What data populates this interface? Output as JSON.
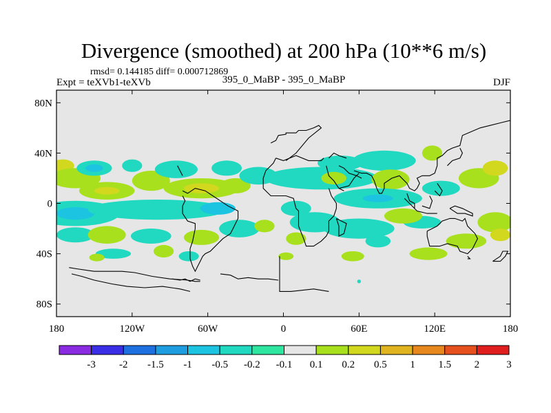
{
  "chart_data": {
    "type": "heatmap",
    "title": "Divergence (smoothed) at 200 hPa (10**6 m/s)",
    "stats_label": "rmsd= 0.144185 diff= 0.000712869",
    "left_label": "Expt = teXVb1-teXVb",
    "center_label": "395_0_MaBP - 395_0_MaBP",
    "right_label": "DJF",
    "x_ticks": [
      {
        "value": -180,
        "label": "180"
      },
      {
        "value": -120,
        "label": "120W"
      },
      {
        "value": -60,
        "label": "60W"
      },
      {
        "value": 0,
        "label": "0"
      },
      {
        "value": 60,
        "label": "60E"
      },
      {
        "value": 120,
        "label": "120E"
      },
      {
        "value": 180,
        "label": "180"
      }
    ],
    "y_ticks": [
      {
        "value": 80,
        "label": "80N"
      },
      {
        "value": 40,
        "label": "40N"
      },
      {
        "value": 0,
        "label": "0"
      },
      {
        "value": -40,
        "label": "40S"
      },
      {
        "value": -80,
        "label": "80S"
      }
    ],
    "xlim": [
      -180,
      180
    ],
    "ylim": [
      -90,
      90
    ],
    "colorbar": {
      "levels": [
        "-3",
        "-2",
        "-1.5",
        "-1",
        "-0.5",
        "-0.2",
        "-0.1",
        "0.1",
        "0.2",
        "0.5",
        "1",
        "1.5",
        "2",
        "3"
      ],
      "colors": [
        "#8a2be2",
        "#3a2ee6",
        "#1e6fe0",
        "#1e9ee0",
        "#1cc4e2",
        "#20d9c0",
        "#2ee6a0",
        "#e6e6e6",
        "#a8e01e",
        "#d2d81e",
        "#e0b41e",
        "#e6881e",
        "#e6501e",
        "#e01e1e"
      ]
    },
    "background_color": "#e6e6e6",
    "blobs": [
      {
        "lon": -175,
        "lat": 30,
        "rx": 9,
        "ry": 5,
        "bin": 9
      },
      {
        "lon": -165,
        "lat": 20,
        "rx": 20,
        "ry": 8,
        "bin": 8
      },
      {
        "lon": -150,
        "lat": 28,
        "rx": 14,
        "ry": 6,
        "bin": 5
      },
      {
        "lon": -150,
        "lat": 28,
        "rx": 7,
        "ry": 3,
        "bin": 4
      },
      {
        "lon": -140,
        "lat": 10,
        "rx": 22,
        "ry": 7,
        "bin": 8
      },
      {
        "lon": -140,
        "lat": 10,
        "rx": 10,
        "ry": 3,
        "bin": 9
      },
      {
        "lon": -120,
        "lat": 30,
        "rx": 8,
        "ry": 5,
        "bin": 5
      },
      {
        "lon": -105,
        "lat": 18,
        "rx": 15,
        "ry": 8,
        "bin": 8
      },
      {
        "lon": -85,
        "lat": 27,
        "rx": 17,
        "ry": 7,
        "bin": 5
      },
      {
        "lon": -65,
        "lat": 12,
        "rx": 30,
        "ry": 8,
        "bin": 8
      },
      {
        "lon": -65,
        "lat": 12,
        "rx": 14,
        "ry": 4,
        "bin": 9
      },
      {
        "lon": -45,
        "lat": 28,
        "rx": 12,
        "ry": 6,
        "bin": 5
      },
      {
        "lon": -38,
        "lat": 14,
        "rx": 12,
        "ry": 6,
        "bin": 8
      },
      {
        "lon": -20,
        "lat": 22,
        "rx": 15,
        "ry": 7,
        "bin": 5
      },
      {
        "lon": -165,
        "lat": -8,
        "rx": 35,
        "ry": 10,
        "bin": 5
      },
      {
        "lon": -165,
        "lat": -8,
        "rx": 15,
        "ry": 5,
        "bin": 4
      },
      {
        "lon": -135,
        "lat": -5,
        "rx": 20,
        "ry": 5,
        "bin": 5
      },
      {
        "lon": -100,
        "lat": -5,
        "rx": 55,
        "ry": 8,
        "bin": 5
      },
      {
        "lon": -52,
        "lat": -4,
        "rx": 14,
        "ry": 5,
        "bin": 4
      },
      {
        "lon": -165,
        "lat": -25,
        "rx": 15,
        "ry": 6,
        "bin": 5
      },
      {
        "lon": -140,
        "lat": -25,
        "rx": 15,
        "ry": 7,
        "bin": 8
      },
      {
        "lon": -105,
        "lat": -26,
        "rx": 16,
        "ry": 6,
        "bin": 5
      },
      {
        "lon": -65,
        "lat": -27,
        "rx": 14,
        "ry": 6,
        "bin": 8
      },
      {
        "lon": -35,
        "lat": -20,
        "rx": 16,
        "ry": 7,
        "bin": 5
      },
      {
        "lon": -15,
        "lat": -18,
        "rx": 8,
        "ry": 5,
        "bin": 8
      },
      {
        "lon": -135,
        "lat": -40,
        "rx": 14,
        "ry": 4,
        "bin": 5
      },
      {
        "lon": -148,
        "lat": -43,
        "rx": 6,
        "ry": 3,
        "bin": 8
      },
      {
        "lon": -95,
        "lat": -38,
        "rx": 8,
        "ry": 5,
        "bin": 8
      },
      {
        "lon": -75,
        "lat": -42,
        "rx": 8,
        "ry": 4,
        "bin": 5
      },
      {
        "lon": 30,
        "lat": 20,
        "rx": 45,
        "ry": 9,
        "bin": 5
      },
      {
        "lon": 45,
        "lat": 32,
        "rx": 18,
        "ry": 6,
        "bin": 5
      },
      {
        "lon": 40,
        "lat": 20,
        "rx": 10,
        "ry": 5,
        "bin": 8
      },
      {
        "lon": 80,
        "lat": 34,
        "rx": 25,
        "ry": 8,
        "bin": 5
      },
      {
        "lon": 118,
        "lat": 40,
        "rx": 8,
        "ry": 6,
        "bin": 8
      },
      {
        "lon": 85,
        "lat": 19,
        "rx": 15,
        "ry": 8,
        "bin": 8
      },
      {
        "lon": 75,
        "lat": 4,
        "rx": 35,
        "ry": 8,
        "bin": 5
      },
      {
        "lon": 75,
        "lat": 4,
        "rx": 12,
        "ry": 3,
        "bin": 4
      },
      {
        "lon": 125,
        "lat": 12,
        "rx": 15,
        "ry": 6,
        "bin": 5
      },
      {
        "lon": 155,
        "lat": 20,
        "rx": 16,
        "ry": 8,
        "bin": 8
      },
      {
        "lon": 168,
        "lat": 28,
        "rx": 10,
        "ry": 6,
        "bin": 9
      },
      {
        "lon": 10,
        "lat": -4,
        "rx": 12,
        "ry": 6,
        "bin": 5
      },
      {
        "lon": 25,
        "lat": -15,
        "rx": 20,
        "ry": 8,
        "bin": 5
      },
      {
        "lon": 60,
        "lat": -20,
        "rx": 28,
        "ry": 8,
        "bin": 5
      },
      {
        "lon": 110,
        "lat": -15,
        "rx": 15,
        "ry": 5,
        "bin": 5
      },
      {
        "lon": 95,
        "lat": -10,
        "rx": 15,
        "ry": 6,
        "bin": 8
      },
      {
        "lon": 168,
        "lat": -15,
        "rx": 14,
        "ry": 8,
        "bin": 8
      },
      {
        "lon": 172,
        "lat": -25,
        "rx": 8,
        "ry": 5,
        "bin": 9
      },
      {
        "lon": 10,
        "lat": -28,
        "rx": 8,
        "ry": 5,
        "bin": 8
      },
      {
        "lon": 75,
        "lat": -30,
        "rx": 10,
        "ry": 5,
        "bin": 5
      },
      {
        "lon": 145,
        "lat": -30,
        "rx": 16,
        "ry": 6,
        "bin": 8
      },
      {
        "lon": 115,
        "lat": -40,
        "rx": 15,
        "ry": 5,
        "bin": 8
      },
      {
        "lon": 55,
        "lat": -42,
        "rx": 9,
        "ry": 4,
        "bin": 8
      },
      {
        "lon": 2,
        "lat": -42,
        "rx": 6,
        "ry": 3,
        "bin": 8
      },
      {
        "lon": 60,
        "lat": -62,
        "rx": 1.5,
        "ry": 1.5,
        "bin": 5
      }
    ],
    "coastlines": [
      [
        [
          -170,
          -51
        ],
        [
          -164,
          -52
        ],
        [
          -150,
          -54
        ],
        [
          -128,
          -54
        ],
        [
          -118,
          -55
        ],
        [
          -104,
          -58
        ],
        [
          -90,
          -60
        ],
        [
          -76,
          -61
        ],
        [
          -70,
          -62
        ],
        [
          -66,
          -62
        ]
      ],
      [
        [
          -168,
          -56
        ],
        [
          -160,
          -58
        ],
        [
          -150,
          -61
        ],
        [
          -136,
          -64
        ],
        [
          -124,
          -66
        ],
        [
          -110,
          -67
        ],
        [
          -96,
          -66
        ],
        [
          -82,
          -68
        ],
        [
          -74,
          -70
        ]
      ],
      [
        [
          -88,
          -60
        ],
        [
          -82,
          -61
        ],
        [
          -78,
          -60
        ],
        [
          -74,
          -62
        ],
        [
          -70,
          -60
        ],
        [
          -66,
          -61
        ]
      ],
      [
        [
          -50,
          -56
        ],
        [
          -42,
          -57
        ],
        [
          -36,
          -60
        ],
        [
          -28,
          -59
        ],
        [
          -20,
          -60
        ],
        [
          -12,
          -60
        ],
        [
          -4,
          -61
        ]
      ],
      [
        [
          -3,
          -42
        ],
        [
          -3,
          -70
        ],
        [
          6,
          -70
        ],
        [
          24,
          -68
        ],
        [
          36,
          -70
        ]
      ],
      [
        [
          -10,
          48
        ],
        [
          -6,
          50
        ],
        [
          -4,
          54
        ],
        [
          2,
          55
        ],
        [
          2,
          56
        ],
        [
          10,
          56
        ],
        [
          12,
          58
        ],
        [
          18,
          58
        ],
        [
          24,
          60
        ],
        [
          28,
          62
        ],
        [
          30,
          60
        ],
        [
          20,
          52
        ],
        [
          10,
          40
        ],
        [
          2,
          34
        ]
      ],
      [
        [
          -6,
          36
        ],
        [
          0,
          34
        ],
        [
          10,
          38
        ],
        [
          20,
          34
        ],
        [
          30,
          34
        ],
        [
          32,
          36
        ]
      ],
      [
        [
          36,
          36
        ],
        [
          40,
          40
        ],
        [
          44,
          38
        ],
        [
          50,
          36
        ]
      ],
      [
        [
          34,
          30
        ],
        [
          36,
          22
        ],
        [
          40,
          18
        ],
        [
          44,
          12
        ],
        [
          48,
          10
        ]
      ],
      [
        [
          44,
          12
        ],
        [
          52,
          14
        ],
        [
          56,
          20
        ],
        [
          60,
          24
        ]
      ],
      [
        [
          36,
          12
        ],
        [
          38,
          6
        ],
        [
          42,
          0
        ],
        [
          42,
          -4
        ],
        [
          40,
          -10
        ],
        [
          36,
          -14
        ],
        [
          36,
          -22
        ],
        [
          34,
          -26
        ],
        [
          30,
          -30
        ],
        [
          24,
          -34
        ],
        [
          18,
          -34
        ],
        [
          16,
          -28
        ],
        [
          12,
          -18
        ],
        [
          12,
          -6
        ],
        [
          10,
          -4
        ],
        [
          8,
          4
        ],
        [
          2,
          6
        ],
        [
          -6,
          6
        ],
        [
          -10,
          6
        ],
        [
          -16,
          12
        ],
        [
          -16,
          20
        ],
        [
          -14,
          26
        ],
        [
          -8,
          32
        ],
        [
          -6,
          36
        ]
      ],
      [
        [
          -80,
          10
        ],
        [
          -76,
          8
        ],
        [
          -70,
          12
        ],
        [
          -62,
          10
        ],
        [
          -56,
          6
        ],
        [
          -50,
          2
        ],
        [
          -44,
          -2
        ],
        [
          -36,
          -6
        ],
        [
          -36,
          -12
        ],
        [
          -40,
          -20
        ],
        [
          -42,
          -24
        ],
        [
          -48,
          -28
        ],
        [
          -52,
          -32
        ],
        [
          -56,
          -36
        ],
        [
          -58,
          -38
        ],
        [
          -62,
          -40
        ],
        [
          -64,
          -42
        ],
        [
          -66,
          -46
        ],
        [
          -68,
          -50
        ],
        [
          -70,
          -54
        ],
        [
          -72,
          -50
        ],
        [
          -74,
          -44
        ],
        [
          -74,
          -36
        ],
        [
          -72,
          -30
        ],
        [
          -70,
          -20
        ],
        [
          -70,
          -16
        ],
        [
          -76,
          -14
        ],
        [
          -80,
          -8
        ],
        [
          -80,
          -2
        ],
        [
          -78,
          2
        ],
        [
          -80,
          6
        ]
      ],
      [
        [
          -84,
          30
        ],
        [
          -82,
          26
        ],
        [
          -80,
          22
        ]
      ],
      [
        [
          42,
          -12
        ],
        [
          46,
          -14
        ],
        [
          50,
          -16
        ],
        [
          48,
          -24
        ],
        [
          44,
          -26
        ],
        [
          44,
          -18
        ],
        [
          42,
          -12
        ]
      ],
      [
        [
          44,
          30
        ],
        [
          48,
          28
        ],
        [
          52,
          24
        ],
        [
          58,
          22
        ],
        [
          62,
          20
        ]
      ],
      [
        [
          56,
          26
        ],
        [
          62,
          24
        ],
        [
          66,
          24
        ],
        [
          70,
          22
        ],
        [
          72,
          18
        ],
        [
          74,
          12
        ],
        [
          76,
          8
        ],
        [
          78,
          8
        ],
        [
          80,
          12
        ],
        [
          80,
          16
        ],
        [
          86,
          20
        ],
        [
          92,
          22
        ],
        [
          96,
          18
        ],
        [
          98,
          16
        ],
        [
          100,
          12
        ],
        [
          104,
          10
        ],
        [
          106,
          12
        ],
        [
          108,
          16
        ],
        [
          106,
          20
        ],
        [
          110,
          22
        ],
        [
          116,
          22
        ],
        [
          120,
          24
        ],
        [
          122,
          30
        ],
        [
          122,
          36
        ],
        [
          126,
          38
        ],
        [
          130,
          42
        ],
        [
          134,
          44
        ],
        [
          140,
          46
        ],
        [
          142,
          54
        ],
        [
          156,
          60
        ],
        [
          164,
          62
        ],
        [
          172,
          64
        ],
        [
          180,
          66
        ]
      ],
      [
        [
          98,
          8
        ],
        [
          100,
          2
        ],
        [
          104,
          0
        ],
        [
          104,
          -4
        ]
      ],
      [
        [
          96,
          4
        ],
        [
          100,
          0
        ],
        [
          106,
          -6
        ],
        [
          114,
          -8
        ],
        [
          122,
          -8
        ]
      ],
      [
        [
          110,
          -2
        ],
        [
          116,
          -4
        ],
        [
          118,
          2
        ],
        [
          116,
          6
        ]
      ],
      [
        [
          130,
          30
        ],
        [
          134,
          34
        ],
        [
          140,
          36
        ],
        [
          142,
          40
        ],
        [
          140,
          44
        ]
      ],
      [
        [
          120,
          10
        ],
        [
          124,
          6
        ],
        [
          126,
          10
        ],
        [
          122,
          16
        ]
      ],
      [
        [
          132,
          -4
        ],
        [
          136,
          -2
        ],
        [
          142,
          -4
        ],
        [
          150,
          -8
        ],
        [
          150,
          -10
        ],
        [
          144,
          -8
        ],
        [
          138,
          -8
        ],
        [
          132,
          -4
        ]
      ],
      [
        [
          114,
          -22
        ],
        [
          114,
          -26
        ],
        [
          116,
          -34
        ],
        [
          124,
          -34
        ],
        [
          130,
          -32
        ],
        [
          138,
          -34
        ],
        [
          140,
          -38
        ],
        [
          146,
          -40
        ],
        [
          150,
          -36
        ],
        [
          154,
          -28
        ],
        [
          152,
          -24
        ],
        [
          146,
          -18
        ],
        [
          144,
          -12
        ],
        [
          142,
          -14
        ],
        [
          136,
          -12
        ],
        [
          132,
          -12
        ],
        [
          126,
          -14
        ],
        [
          122,
          -18
        ],
        [
          114,
          -22
        ]
      ],
      [
        [
          146,
          -42
        ],
        [
          148,
          -44
        ],
        [
          146,
          -44
        ]
      ],
      [
        [
          166,
          -46
        ],
        [
          172,
          -42
        ],
        [
          174,
          -38
        ],
        [
          178,
          -38
        ],
        [
          176,
          -42
        ],
        [
          172,
          -46
        ],
        [
          166,
          -46
        ]
      ]
    ]
  }
}
